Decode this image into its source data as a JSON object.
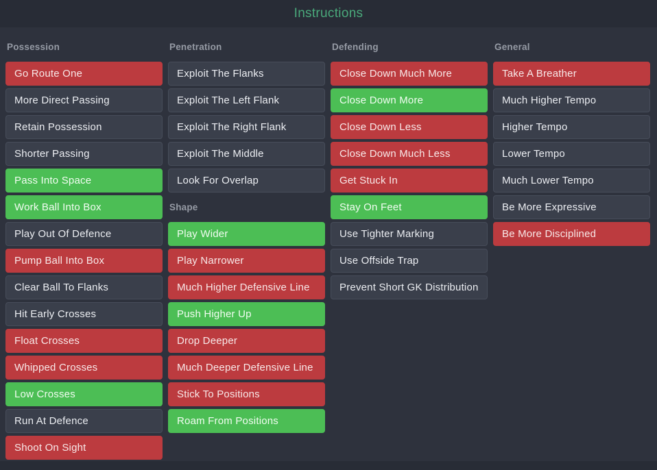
{
  "title": "Instructions",
  "colors": {
    "background": "#2e323d",
    "bar": "#282c36",
    "title_green": "#4aa97b",
    "header_gray": "#969ba5",
    "neutral_button": "#3a3f4b",
    "neutral_border": "#474d5a",
    "negative_red": "#bc3b3f",
    "positive_green": "#4cbe55"
  },
  "columns": [
    {
      "sections": [
        {
          "header": "Possession",
          "items": [
            {
              "label": "Go Route One",
              "state": "negative"
            },
            {
              "label": "More Direct Passing",
              "state": "neutral"
            },
            {
              "label": "Retain Possession",
              "state": "neutral"
            },
            {
              "label": "Shorter Passing",
              "state": "neutral"
            },
            {
              "label": "Pass Into Space",
              "state": "positive"
            },
            {
              "label": "Work Ball Into Box",
              "state": "positive"
            },
            {
              "label": "Play Out Of Defence",
              "state": "neutral"
            },
            {
              "label": "Pump Ball Into Box",
              "state": "negative"
            },
            {
              "label": "Clear Ball To Flanks",
              "state": "neutral"
            },
            {
              "label": "Hit Early Crosses",
              "state": "neutral"
            },
            {
              "label": "Float Crosses",
              "state": "negative"
            },
            {
              "label": "Whipped Crosses",
              "state": "negative"
            },
            {
              "label": "Low Crosses",
              "state": "positive"
            },
            {
              "label": "Run At Defence",
              "state": "neutral"
            },
            {
              "label": "Shoot On Sight",
              "state": "negative"
            }
          ]
        }
      ]
    },
    {
      "sections": [
        {
          "header": "Penetration",
          "items": [
            {
              "label": "Exploit The Flanks",
              "state": "neutral"
            },
            {
              "label": "Exploit The Left Flank",
              "state": "neutral"
            },
            {
              "label": "Exploit The Right Flank",
              "state": "neutral"
            },
            {
              "label": "Exploit The Middle",
              "state": "neutral"
            },
            {
              "label": "Look For Overlap",
              "state": "neutral"
            }
          ]
        },
        {
          "header": "Shape",
          "items": [
            {
              "label": "Play Wider",
              "state": "positive"
            },
            {
              "label": "Play Narrower",
              "state": "negative"
            },
            {
              "label": "Much Higher Defensive Line",
              "state": "negative"
            },
            {
              "label": "Push Higher Up",
              "state": "positive"
            },
            {
              "label": "Drop Deeper",
              "state": "negative"
            },
            {
              "label": "Much Deeper Defensive Line",
              "state": "negative"
            },
            {
              "label": "Stick To Positions",
              "state": "negative"
            },
            {
              "label": "Roam From Positions",
              "state": "positive"
            }
          ]
        }
      ]
    },
    {
      "sections": [
        {
          "header": "Defending",
          "items": [
            {
              "label": "Close Down Much More",
              "state": "negative"
            },
            {
              "label": "Close Down More",
              "state": "positive"
            },
            {
              "label": "Close Down Less",
              "state": "negative"
            },
            {
              "label": "Close Down Much Less",
              "state": "negative"
            },
            {
              "label": "Get Stuck In",
              "state": "negative"
            },
            {
              "label": "Stay On Feet",
              "state": "positive"
            },
            {
              "label": "Use Tighter Marking",
              "state": "neutral"
            },
            {
              "label": "Use Offside Trap",
              "state": "neutral"
            },
            {
              "label": "Prevent Short GK Distribution",
              "state": "neutral"
            }
          ]
        }
      ]
    },
    {
      "sections": [
        {
          "header": "General",
          "items": [
            {
              "label": "Take A Breather",
              "state": "negative"
            },
            {
              "label": "Much Higher Tempo",
              "state": "neutral"
            },
            {
              "label": "Higher Tempo",
              "state": "neutral"
            },
            {
              "label": "Lower Tempo",
              "state": "neutral"
            },
            {
              "label": "Much Lower Tempo",
              "state": "neutral"
            },
            {
              "label": "Be More Expressive",
              "state": "neutral"
            },
            {
              "label": "Be More Disciplined",
              "state": "negative"
            }
          ]
        }
      ]
    }
  ]
}
